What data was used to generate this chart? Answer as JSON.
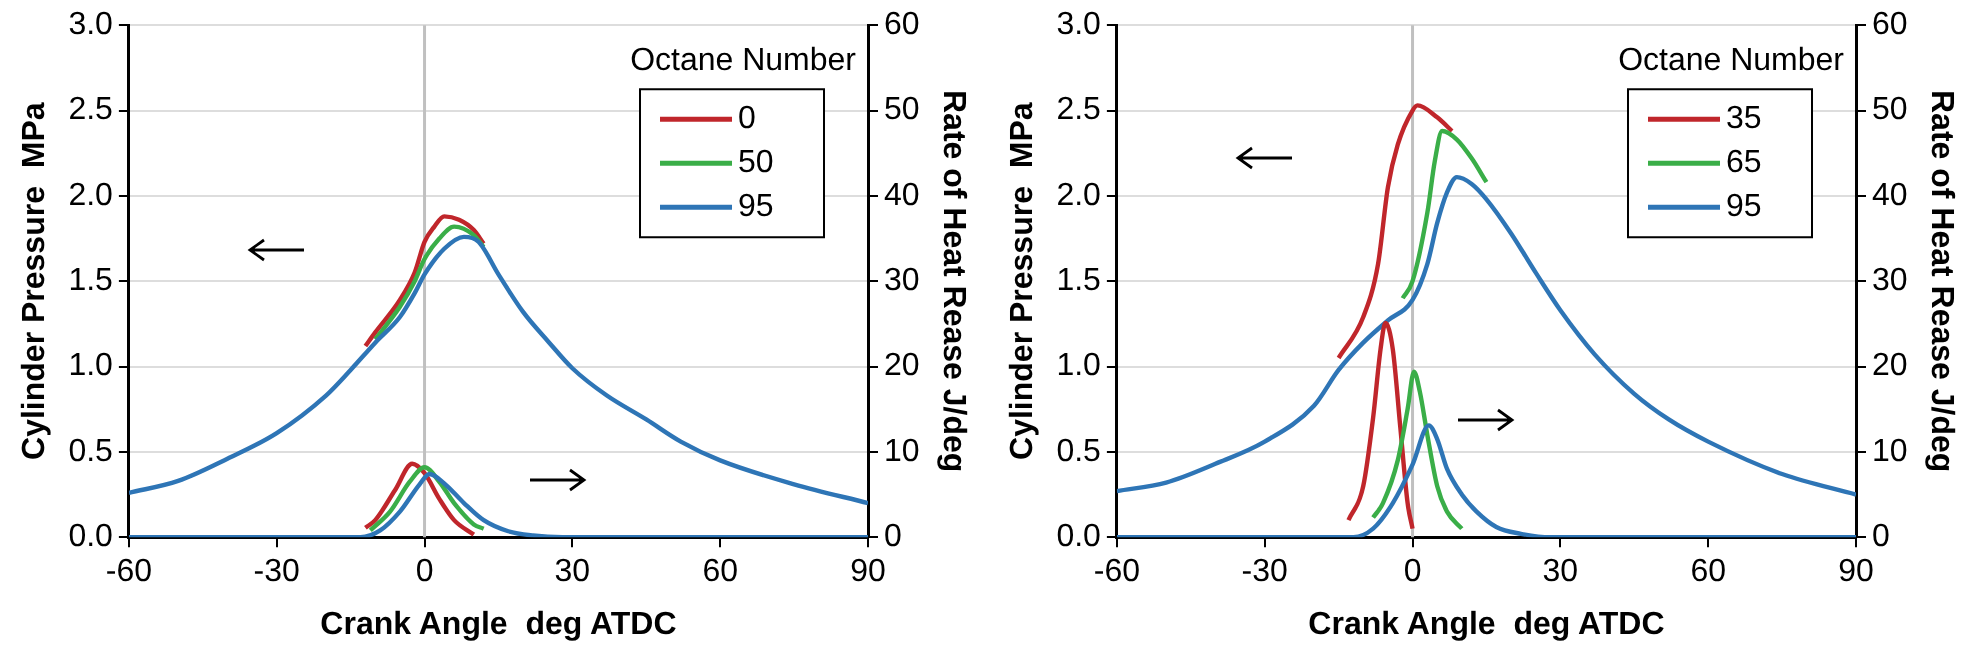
{
  "chart_data": [
    {
      "type": "line",
      "xlabel": "Crank Angle  deg ATDC",
      "ylabel": "Cylinder Pressure  MPa",
      "y2label": "Rate of Heat Rease J/deg",
      "legend_title": "Octane Number",
      "legend": "top right",
      "grid": "y",
      "marker": "none",
      "line_style": "solid",
      "xlim": [
        -60,
        90
      ],
      "xticks": [
        -60,
        -30,
        0,
        30,
        60,
        90
      ],
      "ylim": [
        0,
        3
      ],
      "yticks": [
        {
          "value": 0,
          "label": "0.0"
        },
        {
          "value": 0.5,
          "label": "0.5"
        },
        {
          "value": 1,
          "label": "1.0"
        },
        {
          "value": 1.5,
          "label": "1.5"
        },
        {
          "value": 2,
          "label": "2.0"
        },
        {
          "value": 2.5,
          "label": "2.5"
        },
        {
          "value": 3,
          "label": "3.0"
        }
      ],
      "y2lim": [
        0,
        60
      ],
      "y2ticks": [
        0,
        10,
        20,
        30,
        40,
        50,
        60
      ],
      "ref_lines": [
        {
          "axis": "x",
          "value": 0,
          "color": "#c0c0c0"
        }
      ],
      "series": [
        {
          "name": "0",
          "color": "#c0262b",
          "x": [
            -12,
            -10,
            -5,
            -2,
            0,
            2,
            4,
            7,
            10,
            12
          ],
          "values": [
            1.12,
            1.2,
            1.39,
            1.55,
            1.73,
            1.82,
            1.88,
            1.86,
            1.8,
            1.72
          ]
        },
        {
          "name": "50",
          "color": "#3aae48",
          "x": [
            -10,
            -5,
            -2,
            0,
            3,
            6,
            10,
            12
          ],
          "values": [
            1.16,
            1.35,
            1.5,
            1.63,
            1.75,
            1.82,
            1.77,
            1.7
          ]
        },
        {
          "name": "95",
          "color": "#2e75b6",
          "x": [
            -60,
            -50,
            -40,
            -30,
            -20,
            -15,
            -10,
            -5,
            -2,
            0,
            4,
            8,
            11,
            15,
            20,
            25,
            30,
            37,
            45,
            52,
            60,
            75,
            90
          ],
          "values": [
            0.26,
            0.33,
            0.46,
            0.61,
            0.83,
            0.98,
            1.14,
            1.29,
            1.43,
            1.54,
            1.69,
            1.76,
            1.73,
            1.54,
            1.32,
            1.15,
            0.99,
            0.83,
            0.69,
            0.56,
            0.45,
            0.31,
            0.2
          ]
        },
        {
          "color": "#c0262b",
          "axis": "y2",
          "x": [
            -12,
            -10,
            -6,
            -2.5,
            0,
            3,
            6,
            10
          ],
          "values": [
            1.1,
            2,
            5.5,
            8.6,
            7.5,
            4.5,
            2,
            0.3
          ]
        },
        {
          "color": "#3aae48",
          "axis": "y2",
          "x": [
            -11,
            -7,
            -3,
            0,
            3,
            6,
            10,
            12
          ],
          "values": [
            0.8,
            3,
            6.5,
            8.2,
            6.5,
            4,
            1.5,
            1
          ]
        },
        {
          "color": "#2e75b6",
          "axis": "y2",
          "x": [
            -60,
            -13,
            -9,
            -5,
            -1,
            1,
            4,
            8,
            12,
            17,
            22,
            28,
            90
          ],
          "values": [
            0,
            0,
            0.8,
            3,
            6.2,
            7.4,
            6.3,
            4,
            2,
            0.7,
            0.2,
            0,
            0
          ]
        }
      ]
    },
    {
      "type": "line",
      "xlabel": "Crank Angle  deg ATDC",
      "ylabel": "Cylinder Pressure  MPa",
      "y2label": "Rate of Heat Rease J/deg",
      "legend_title": "Octane Number",
      "legend": "top right",
      "grid": "y",
      "marker": "none",
      "line_style": "solid",
      "xlim": [
        -60,
        90
      ],
      "xticks": [
        -60,
        -30,
        0,
        30,
        60,
        90
      ],
      "ylim": [
        0,
        3
      ],
      "yticks": [
        {
          "value": 0,
          "label": "0.0"
        },
        {
          "value": 0.5,
          "label": "0.5"
        },
        {
          "value": 1,
          "label": "1.0"
        },
        {
          "value": 1.5,
          "label": "1.5"
        },
        {
          "value": 2,
          "label": "2.0"
        },
        {
          "value": 2.5,
          "label": "2.5"
        },
        {
          "value": 3,
          "label": "3.0"
        }
      ],
      "y2lim": [
        0,
        60
      ],
      "y2ticks": [
        0,
        10,
        20,
        30,
        40,
        50,
        60
      ],
      "ref_lines": [
        {
          "axis": "x",
          "value": 0,
          "color": "#c0c0c0"
        }
      ],
      "series": [
        {
          "name": "35",
          "color": "#c0262b",
          "x": [
            -15,
            -10,
            -7,
            -5,
            -3,
            0,
            1,
            5,
            8
          ],
          "values": [
            1.05,
            1.29,
            1.6,
            2.05,
            2.3,
            2.5,
            2.53,
            2.46,
            2.38
          ]
        },
        {
          "name": "65",
          "color": "#3aae48",
          "x": [
            -2,
            0,
            3,
            4.5,
            6,
            9,
            12,
            15
          ],
          "values": [
            1.4,
            1.5,
            1.9,
            2.2,
            2.38,
            2.33,
            2.22,
            2.08
          ]
        },
        {
          "name": "95",
          "color": "#2e75b6",
          "x": [
            -60,
            -50,
            -40,
            -30,
            -20,
            -15,
            -10,
            -5,
            0,
            3,
            5,
            7,
            9,
            12,
            15,
            20,
            25,
            30,
            37,
            45,
            52,
            60,
            75,
            90
          ],
          "values": [
            0.27,
            0.32,
            0.43,
            0.56,
            0.77,
            0.98,
            1.14,
            1.27,
            1.39,
            1.6,
            1.84,
            2.02,
            2.11,
            2.07,
            1.98,
            1.78,
            1.55,
            1.33,
            1.07,
            0.84,
            0.69,
            0.56,
            0.37,
            0.25
          ]
        },
        {
          "color": "#c0262b",
          "axis": "y2",
          "x": [
            -13,
            -10,
            -8,
            -6.5,
            -5.5,
            -4,
            -2.5,
            -1,
            0
          ],
          "values": [
            2,
            6,
            14,
            22,
            25.1,
            22,
            13,
            4,
            1
          ]
        },
        {
          "color": "#3aae48",
          "axis": "y2",
          "x": [
            -8,
            -6,
            -3,
            -1,
            0.3,
            1.5,
            3,
            5,
            7,
            10
          ],
          "values": [
            2.3,
            4,
            9,
            15,
            19.4,
            17,
            12,
            6,
            3,
            1
          ]
        },
        {
          "color": "#2e75b6",
          "axis": "y2",
          "x": [
            -60,
            -12,
            -8,
            -4,
            0,
            3.3,
            5,
            7,
            10,
            13,
            17,
            22,
            28,
            90
          ],
          "values": [
            0,
            0,
            1,
            4,
            8.5,
            13.1,
            11.5,
            8,
            5,
            3,
            1.2,
            0.4,
            0,
            0
          ]
        }
      ]
    }
  ]
}
